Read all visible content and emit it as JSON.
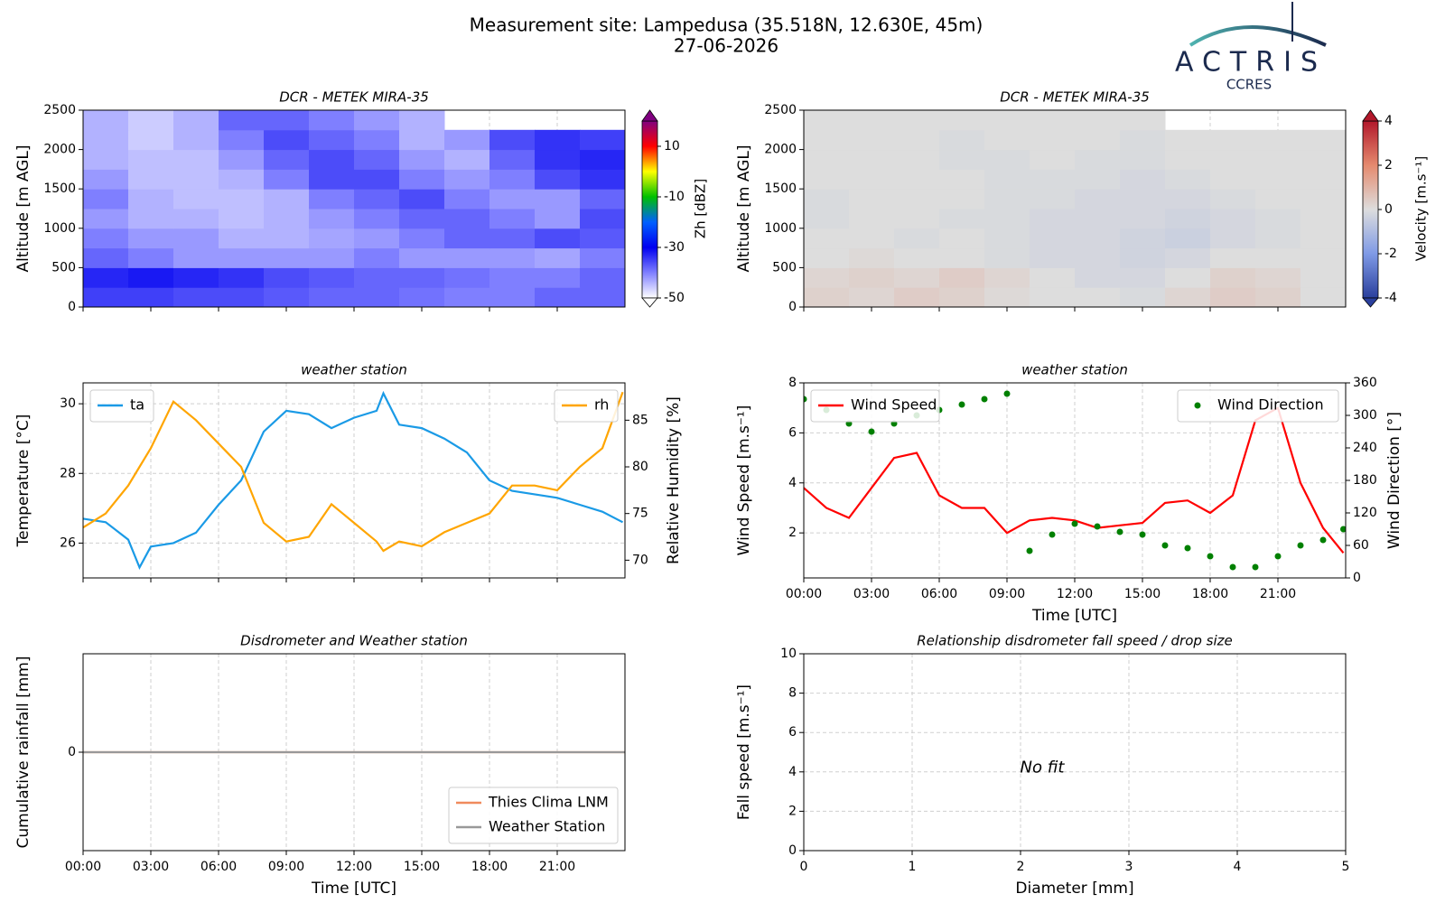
{
  "figure": {
    "title": "Measurement site: Lampedusa (35.518N, 12.630E, 45m)",
    "date": "27-06-2026",
    "logo": "ACTRIS",
    "logo_sub": "CCRES"
  },
  "chart_data": [
    {
      "type": "heatmap",
      "title": "DCR - METEK MIRA-35",
      "y_label": "Altitude [m AGL]",
      "x": [
        1,
        3,
        5,
        7,
        9,
        11,
        13,
        15,
        17,
        19,
        21,
        23
      ],
      "y": [
        125,
        375,
        625,
        875,
        1125,
        1375,
        1625,
        1875,
        2125,
        2375
      ],
      "values": [
        [
          -35,
          -35,
          -36,
          -36,
          -37,
          -38,
          -38,
          -39,
          -40,
          -40,
          -38,
          -38
        ],
        [
          -33,
          -32,
          -33,
          -34,
          -36,
          -37,
          -38,
          -38,
          -39,
          -40,
          -40,
          -38
        ],
        [
          -38,
          -40,
          -42,
          -42,
          -42,
          -42,
          -40,
          -42,
          -42,
          -42,
          -43,
          -40
        ],
        [
          -40,
          -42,
          -42,
          -44,
          -44,
          -43,
          -42,
          -40,
          -38,
          -38,
          -36,
          -37
        ],
        [
          -42,
          -44,
          -44,
          -45,
          -44,
          -42,
          -40,
          -38,
          -38,
          -40,
          -42,
          -36
        ],
        [
          -40,
          -44,
          -45,
          -45,
          -44,
          -40,
          -38,
          -36,
          -40,
          -42,
          -42,
          -38
        ],
        [
          -42,
          -45,
          -45,
          -44,
          -40,
          -36,
          -36,
          -40,
          -42,
          -40,
          -36,
          -34
        ],
        [
          -44,
          -45,
          -45,
          -42,
          -38,
          -36,
          -38,
          -42,
          -44,
          -38,
          -34,
          -33
        ],
        [
          -44,
          -46,
          -44,
          -40,
          -36,
          -38,
          -40,
          -44,
          -42,
          -36,
          -34,
          -35
        ],
        [
          -44,
          -46,
          -44,
          -38,
          -38,
          -40,
          -42,
          -44,
          null,
          null,
          null,
          null
        ]
      ],
      "xlim": [
        0,
        24
      ],
      "xticks": [
        0,
        3,
        6,
        9,
        12,
        15,
        18,
        21
      ],
      "ylim": [
        0,
        2500
      ],
      "yticks": [
        0,
        500,
        1000,
        1500,
        2000,
        2500
      ],
      "zlim": [
        -50,
        20
      ],
      "zticks": [
        10,
        -10,
        -30,
        -50
      ],
      "colorbar_label": "Zh [dBZ]",
      "colormap": [
        "#ffffff",
        "#7f7fff",
        "#0000f0",
        "#0060ff",
        "#00c000",
        "#ffff00",
        "#ff0000",
        "#800080"
      ],
      "grid": true
    },
    {
      "type": "heatmap",
      "title": "DCR - METEK MIRA-35",
      "y_label": "Altitude [m AGL]",
      "x": [
        1,
        3,
        5,
        7,
        9,
        11,
        13,
        15,
        17,
        19,
        21,
        23
      ],
      "y": [
        125,
        375,
        625,
        875,
        1125,
        1375,
        1625,
        1875,
        2125,
        2375
      ],
      "values": [
        [
          0.3,
          0.2,
          0.4,
          0.3,
          0.1,
          0,
          0,
          -0.1,
          0.2,
          0.4,
          0.3,
          0
        ],
        [
          0.2,
          0.3,
          0.2,
          0.4,
          0.2,
          0,
          -0.2,
          -0.2,
          0,
          0.3,
          0.2,
          0
        ],
        [
          0,
          0.1,
          0,
          0,
          -0.1,
          -0.2,
          -0.2,
          -0.3,
          -0.2,
          0,
          0,
          0
        ],
        [
          0,
          0,
          -0.1,
          0,
          -0.1,
          -0.2,
          -0.2,
          -0.3,
          -0.4,
          -0.2,
          -0.1,
          0
        ],
        [
          -0.1,
          0,
          0,
          -0.1,
          -0.1,
          -0.2,
          -0.2,
          -0.2,
          -0.3,
          -0.2,
          -0.1,
          0
        ],
        [
          -0.1,
          0,
          0,
          0,
          -0.1,
          -0.1,
          -0.2,
          -0.2,
          -0.2,
          -0.1,
          0,
          0
        ],
        [
          0,
          0,
          0,
          0,
          -0.1,
          -0.1,
          -0.1,
          -0.2,
          -0.1,
          0,
          0,
          0
        ],
        [
          0,
          0,
          0,
          -0.1,
          -0.1,
          0,
          -0.1,
          -0.1,
          0,
          0,
          0,
          0
        ],
        [
          0,
          0,
          0,
          -0.1,
          0,
          0,
          0,
          -0.1,
          0,
          0,
          0,
          0
        ],
        [
          0,
          0,
          0,
          0,
          0,
          0,
          0,
          0,
          null,
          null,
          null,
          null
        ]
      ],
      "xlim": [
        0,
        24
      ],
      "xticks": [
        0,
        3,
        6,
        9,
        12,
        15,
        18,
        21
      ],
      "ylim": [
        0,
        2500
      ],
      "yticks": [
        0,
        500,
        1000,
        1500,
        2000,
        2500
      ],
      "zlim": [
        -4,
        4
      ],
      "zticks": [
        4,
        2,
        0,
        -2,
        -4
      ],
      "colorbar_label": "Velocity [m.s⁻¹]",
      "colormap": [
        "#2a3f9d",
        "#7f9ae6",
        "#dddddd",
        "#e58a6e",
        "#b2182b"
      ],
      "grid": true
    },
    {
      "type": "line",
      "title": "weather station",
      "y_label": "Temperature [°C]",
      "y2_label": "Relative Humidity [%]",
      "x": [
        0,
        1,
        2,
        2.5,
        3,
        4,
        5,
        6,
        7,
        8,
        9,
        10,
        11,
        12,
        13,
        13.3,
        14,
        15,
        16,
        17,
        18,
        19,
        20,
        21,
        22,
        23,
        23.9
      ],
      "series": [
        {
          "name": "ta",
          "color": "#1a9ae6",
          "legend": "upper left",
          "values": [
            26.7,
            26.6,
            26.1,
            25.3,
            25.9,
            26.0,
            26.3,
            27.1,
            27.8,
            29.2,
            29.8,
            29.7,
            29.3,
            29.6,
            29.8,
            30.3,
            29.4,
            29.3,
            29.0,
            28.6,
            27.8,
            27.5,
            27.4,
            27.3,
            27.1,
            26.9,
            26.6
          ]
        },
        {
          "name": "rh",
          "color": "#ffa500",
          "axis": "y2",
          "legend": "upper right",
          "values": [
            73.5,
            75,
            78,
            80,
            82,
            87,
            85,
            82.5,
            80,
            74,
            72,
            72.5,
            76,
            74,
            72,
            71,
            72,
            71.5,
            73,
            74,
            75,
            78,
            78,
            77.5,
            80,
            82,
            88
          ]
        }
      ],
      "xlim": [
        0,
        24
      ],
      "xticks": [
        0,
        3,
        6,
        9,
        12,
        15,
        18,
        21
      ],
      "ylim": [
        25,
        30.6
      ],
      "yticks": [
        26,
        28,
        30
      ],
      "y2lim": [
        68.1,
        89
      ],
      "y2ticks": [
        70,
        75,
        80,
        85
      ],
      "grid": true
    },
    {
      "type": "line",
      "title": "weather station",
      "y_label": "Wind Speed [m.s⁻¹]",
      "y2_label": "Wind Direction [°]",
      "x_label": "Time [UTC]",
      "x": [
        0,
        1,
        2,
        3,
        4,
        5,
        6,
        7,
        8,
        9,
        10,
        11,
        12,
        13,
        14,
        15,
        16,
        17,
        18,
        19,
        20,
        21,
        22,
        23,
        23.9
      ],
      "series": [
        {
          "name": "Wind Speed",
          "color": "#ff0000",
          "style": "line",
          "legend": "upper left",
          "values": [
            3.8,
            3.0,
            2.6,
            3.8,
            5.0,
            5.2,
            3.5,
            3.0,
            3.0,
            2.0,
            2.5,
            2.6,
            2.5,
            2.2,
            2.3,
            2.4,
            3.2,
            3.3,
            2.8,
            3.5,
            6.5,
            7.0,
            4.0,
            2.2,
            1.2
          ]
        },
        {
          "name": "Wind Direction",
          "color": "#008000",
          "style": "dots",
          "axis": "y2",
          "legend": "upper right",
          "values": [
            330,
            310,
            285,
            270,
            285,
            300,
            310,
            320,
            330,
            340,
            50,
            80,
            100,
            95,
            85,
            80,
            60,
            55,
            40,
            20,
            20,
            40,
            60,
            70,
            90
          ]
        }
      ],
      "xlim": [
        0,
        24
      ],
      "xticks": [
        {
          "value": 0,
          "label": "00:00"
        },
        {
          "value": 3,
          "label": "03:00"
        },
        {
          "value": 6,
          "label": "06:00"
        },
        {
          "value": 9,
          "label": "09:00"
        },
        {
          "value": 12,
          "label": "12:00"
        },
        {
          "value": 15,
          "label": "15:00"
        },
        {
          "value": 18,
          "label": "18:00"
        },
        {
          "value": 21,
          "label": "21:00"
        }
      ],
      "ylim": [
        0.2,
        8
      ],
      "yticks": [
        2,
        4,
        6,
        8
      ],
      "y2lim": [
        0,
        360
      ],
      "y2ticks": [
        0,
        60,
        120,
        180,
        240,
        300,
        360
      ],
      "grid": true
    },
    {
      "type": "line",
      "title": "Disdrometer and Weather station",
      "y_label": "Cumulative rainfall [mm]",
      "x_label": "Time [UTC]",
      "x": [
        0,
        24
      ],
      "series": [
        {
          "name": "Thies Clima LNM",
          "color": "#f08a5d",
          "values": [
            0,
            0
          ]
        },
        {
          "name": "Weather Station",
          "color": "#999999",
          "values": [
            0,
            0
          ]
        }
      ],
      "legend": "lower right",
      "xlim": [
        0,
        24
      ],
      "xticks": [
        {
          "value": 0,
          "label": "00:00"
        },
        {
          "value": 3,
          "label": "03:00"
        },
        {
          "value": 6,
          "label": "06:00"
        },
        {
          "value": 9,
          "label": "09:00"
        },
        {
          "value": 12,
          "label": "12:00"
        },
        {
          "value": 15,
          "label": "15:00"
        },
        {
          "value": 18,
          "label": "18:00"
        },
        {
          "value": 21,
          "label": "21:00"
        }
      ],
      "ylim": [
        -0.055,
        0.055
      ],
      "yticks": [
        0
      ],
      "grid": true
    },
    {
      "type": "scatter",
      "title": "Relationship disdrometer fall speed / drop size",
      "y_label": "Fall speed [m.s⁻¹]",
      "x_label": "Diameter [mm]",
      "annotation": "No fit",
      "xlim": [
        0,
        5
      ],
      "xticks": [
        0,
        1,
        2,
        3,
        4,
        5
      ],
      "ylim": [
        0,
        10
      ],
      "yticks": [
        0,
        2,
        4,
        6,
        8,
        10
      ],
      "grid": true
    }
  ]
}
